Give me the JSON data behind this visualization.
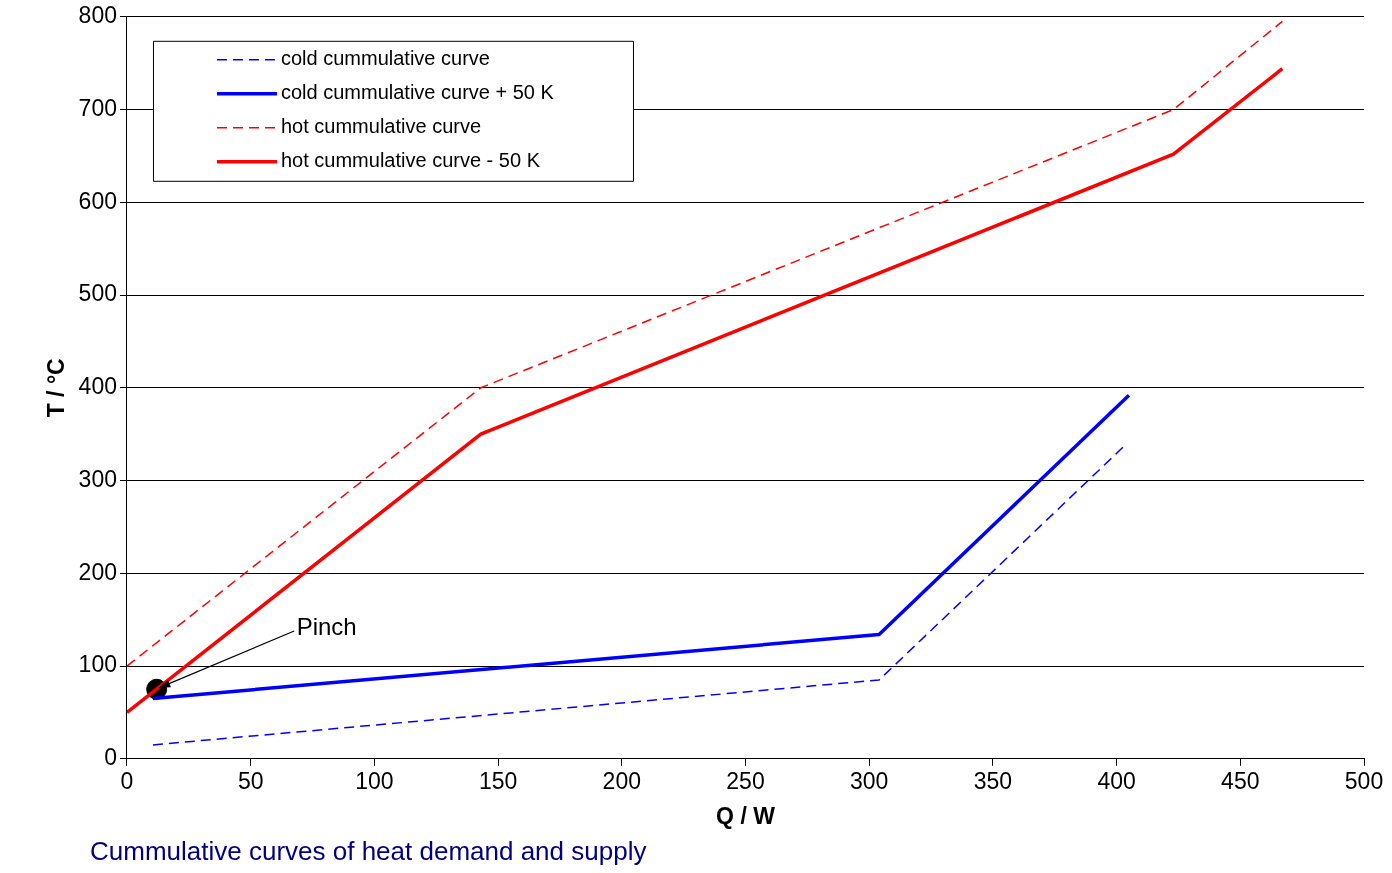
{
  "chart_data": {
    "type": "line",
    "xlabel": "Q / W",
    "ylabel": "T / °C",
    "xlim": [
      0,
      500
    ],
    "xticks": [
      0,
      50,
      100,
      150,
      200,
      250,
      300,
      350,
      400,
      450,
      500
    ],
    "ylim": [
      0,
      800
    ],
    "yticks": [
      0,
      100,
      200,
      300,
      400,
      500,
      600,
      700,
      800
    ],
    "grid": "y",
    "legend": "top left",
    "marker": "none",
    "series": [
      {
        "name": "cold cummulative curve",
        "color": "#0000ff",
        "line_style": "dashed",
        "x": [
          10.5,
          304,
          403
        ],
        "values": [
          15,
          85,
          337
        ]
      },
      {
        "name": "cold cummulative curve + 50 K",
        "color": "#0000ff",
        "line_style": "solid",
        "x": [
          10.5,
          304,
          405
        ],
        "values": [
          65,
          134,
          392
        ]
      },
      {
        "name": "hot cummulative curve",
        "color": "#ff0000",
        "line_style": "dashed",
        "x": [
          0,
          143,
          423,
          467
        ],
        "values": [
          100,
          400,
          700,
          795
        ]
      },
      {
        "name": "hot cummulative curve - 50 K",
        "color": "#ff0000",
        "line_style": "solid",
        "x": [
          0,
          143,
          423,
          467
        ],
        "values": [
          50,
          350,
          652,
          744
        ]
      },
      {
        "type": "scatter",
        "marker": "circle",
        "color": "#000000",
        "x": [
          12
        ],
        "values": [
          75
        ]
      }
    ],
    "annotations": [
      {
        "text": "Pinch",
        "x": 12,
        "y": 75
      },
      "Cummulative curves of heat demand and supply"
    ]
  }
}
